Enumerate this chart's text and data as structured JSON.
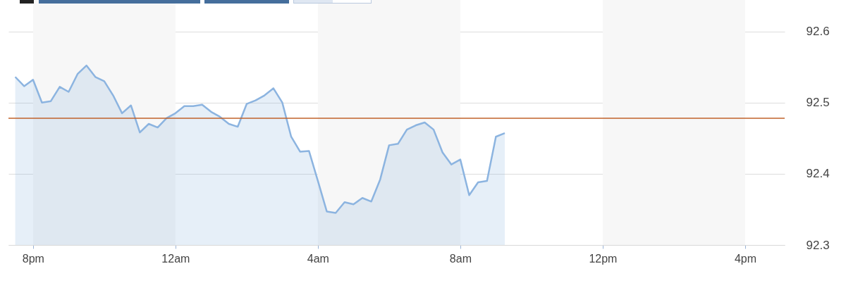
{
  "chart_data": {
    "type": "area",
    "categories": [
      null,
      null,
      "8pm",
      null,
      null,
      null,
      null,
      null,
      null,
      null,
      null,
      null,
      null,
      null,
      null,
      null,
      null,
      null,
      "12am",
      null,
      null,
      null,
      null,
      null,
      null,
      null,
      null,
      null,
      null,
      null,
      null,
      null,
      null,
      null,
      "4am",
      null,
      null,
      null,
      null,
      null,
      null,
      null,
      null,
      null,
      null,
      null,
      null,
      null,
      null,
      null,
      "8am",
      null,
      null,
      null,
      null,
      null,
      null,
      null,
      null,
      null,
      null,
      null,
      null,
      null,
      null,
      null,
      "12pm",
      null,
      null,
      null,
      null,
      null,
      null,
      null,
      null,
      null,
      null,
      null,
      null,
      null,
      null,
      null,
      "4pm",
      null,
      null,
      null,
      null
    ],
    "series": [
      {
        "color": "#8cb4e0",
        "values": [
          92.536,
          92.523,
          92.532,
          92.5,
          92.502,
          92.522,
          92.515,
          92.54,
          92.552,
          92.536,
          92.53,
          92.51,
          92.485,
          92.496,
          92.458,
          92.47,
          92.465,
          92.478,
          92.485,
          92.495,
          92.495,
          92.497,
          92.487,
          92.48,
          92.47,
          92.466,
          92.498,
          92.503,
          92.51,
          92.52,
          92.5,
          92.452,
          92.431,
          92.432,
          92.39,
          92.347,
          92.345,
          92.36,
          92.357,
          92.366,
          92.361,
          92.392,
          92.44,
          92.442,
          92.462,
          92.468,
          92.472,
          92.462,
          92.43,
          92.413,
          92.42,
          92.37,
          92.388,
          92.39,
          92.452,
          92.457,
          null,
          null,
          null,
          null,
          null,
          null,
          null,
          null,
          null,
          null,
          null,
          null,
          null,
          null,
          null,
          null,
          null,
          null,
          null,
          null,
          null,
          null,
          null,
          null,
          null,
          null,
          null,
          null,
          null,
          null,
          null
        ]
      }
    ],
    "ylim": [
      92.3,
      92.644
    ],
    "yticks": [
      92.3,
      92.4,
      92.5,
      92.6
    ],
    "grid": "y",
    "ref_lines": [
      {
        "axis": "y",
        "value": 92.478,
        "color": "#c0622a"
      }
    ],
    "bands": [
      {
        "axis": "x",
        "from": "8pm",
        "to": "12am",
        "color": "#f7f7f7"
      },
      {
        "axis": "x",
        "from": "4am",
        "to": "8am",
        "color": "#f7f7f7"
      },
      {
        "axis": "x",
        "from": "12pm",
        "to": "4pm",
        "color": "#f7f7f7"
      }
    ]
  }
}
